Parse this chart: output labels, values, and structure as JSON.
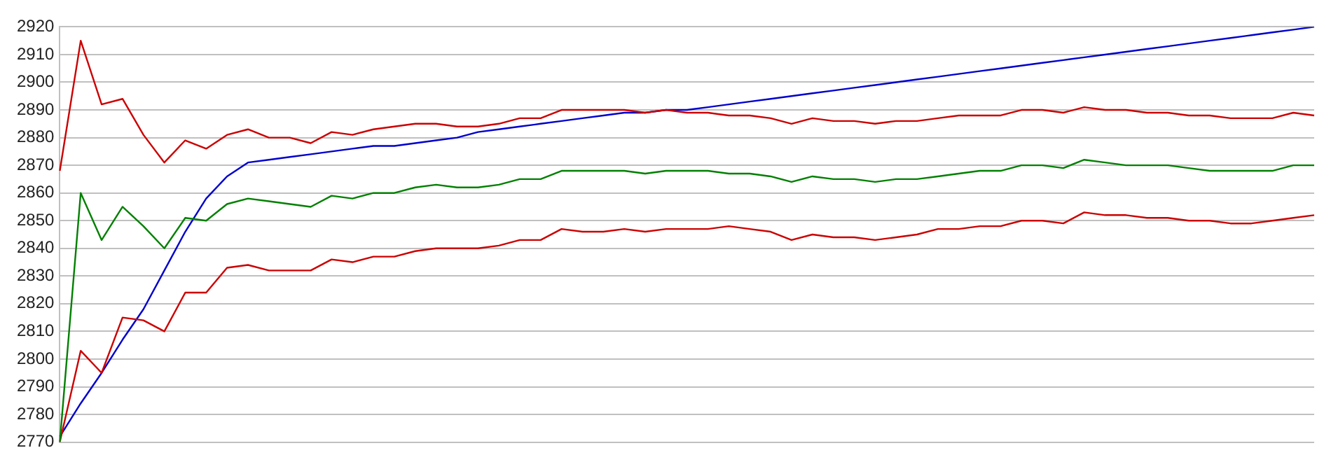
{
  "chart_data": {
    "type": "line",
    "categories": [
      null,
      null,
      null,
      null,
      null,
      null,
      null,
      null,
      null,
      null,
      null,
      null,
      null,
      null,
      null,
      null,
      null,
      null,
      null,
      null,
      null,
      null,
      null,
      null,
      null,
      null,
      null,
      null,
      null,
      null,
      null,
      null,
      null,
      null,
      null,
      null,
      null,
      null,
      null,
      null,
      null,
      null,
      null,
      null,
      null,
      null,
      null,
      null,
      null,
      null,
      null,
      null,
      null,
      null,
      null,
      null,
      null,
      null,
      null,
      null,
      null
    ],
    "series": [
      {
        "color": "#cc0000",
        "values": [
          2868,
          2915,
          2892,
          2894,
          2881,
          2871,
          2879,
          2876,
          2881,
          2883,
          2880,
          2880,
          2878,
          2882,
          2881,
          2883,
          2884,
          2885,
          2885,
          2884,
          2884,
          2885,
          2887,
          2887,
          2890,
          2890,
          2890,
          2890,
          2889,
          2890,
          2889,
          2889,
          2888,
          2888,
          2887,
          2885,
          2887,
          2886,
          2886,
          2885,
          2886,
          2886,
          2887,
          2888,
          2888,
          2888,
          2890,
          2890,
          2889,
          2891,
          2890,
          2890,
          2889,
          2889,
          2888,
          2888,
          2887,
          2887,
          2887,
          2889,
          2888
        ]
      },
      {
        "color": "#008000",
        "values": [
          2770,
          2860,
          2843,
          2855,
          2848,
          2840,
          2851,
          2850,
          2856,
          2858,
          2857,
          2856,
          2855,
          2859,
          2858,
          2860,
          2860,
          2862,
          2863,
          2862,
          2862,
          2863,
          2865,
          2865,
          2868,
          2868,
          2868,
          2868,
          2867,
          2868,
          2868,
          2868,
          2867,
          2867,
          2866,
          2864,
          2866,
          2865,
          2865,
          2864,
          2865,
          2865,
          2866,
          2867,
          2868,
          2868,
          2870,
          2870,
          2869,
          2872,
          2871,
          2870,
          2870,
          2870,
          2869,
          2868,
          2868,
          2868,
          2868,
          2870,
          2870
        ]
      },
      {
        "color": "#cc0000",
        "values": [
          2770,
          2803,
          2795,
          2815,
          2814,
          2810,
          2824,
          2824,
          2833,
          2834,
          2832,
          2832,
          2832,
          2836,
          2835,
          2837,
          2837,
          2839,
          2840,
          2840,
          2840,
          2841,
          2843,
          2843,
          2847,
          2846,
          2846,
          2847,
          2846,
          2847,
          2847,
          2847,
          2848,
          2847,
          2846,
          2843,
          2845,
          2844,
          2844,
          2843,
          2844,
          2845,
          2847,
          2847,
          2848,
          2848,
          2850,
          2850,
          2849,
          2853,
          2852,
          2852,
          2851,
          2851,
          2850,
          2850,
          2849,
          2849,
          2850,
          2851,
          2852
        ]
      },
      {
        "color": "#0000cc",
        "values": [
          2772,
          2784,
          2795,
          2807,
          2818,
          2832,
          2846,
          2858,
          2866,
          2871,
          2872,
          2873,
          2874,
          2875,
          2876,
          2877,
          2877,
          2878,
          2879,
          2880,
          2882,
          2883,
          2884,
          2885,
          2886,
          2887,
          2888,
          2889,
          2889,
          2890,
          2890,
          2891,
          2892,
          2893,
          2894,
          2895,
          2896,
          2897,
          2898,
          2899,
          2900,
          2901,
          2902,
          2903,
          2904,
          2905,
          2906,
          2907,
          2908,
          2909,
          2910,
          2911,
          2912,
          2913,
          2914,
          2915,
          2916,
          2917,
          2918,
          2919,
          2920
        ]
      }
    ],
    "ylim": [
      2770,
      2920
    ],
    "yticks": [
      2770,
      2780,
      2790,
      2800,
      2810,
      2820,
      2830,
      2840,
      2850,
      2860,
      2870,
      2880,
      2890,
      2900,
      2910,
      2920
    ],
    "grid": "y",
    "legend": false,
    "tick_labels": "y",
    "marker": "none",
    "line_style": "solid"
  }
}
